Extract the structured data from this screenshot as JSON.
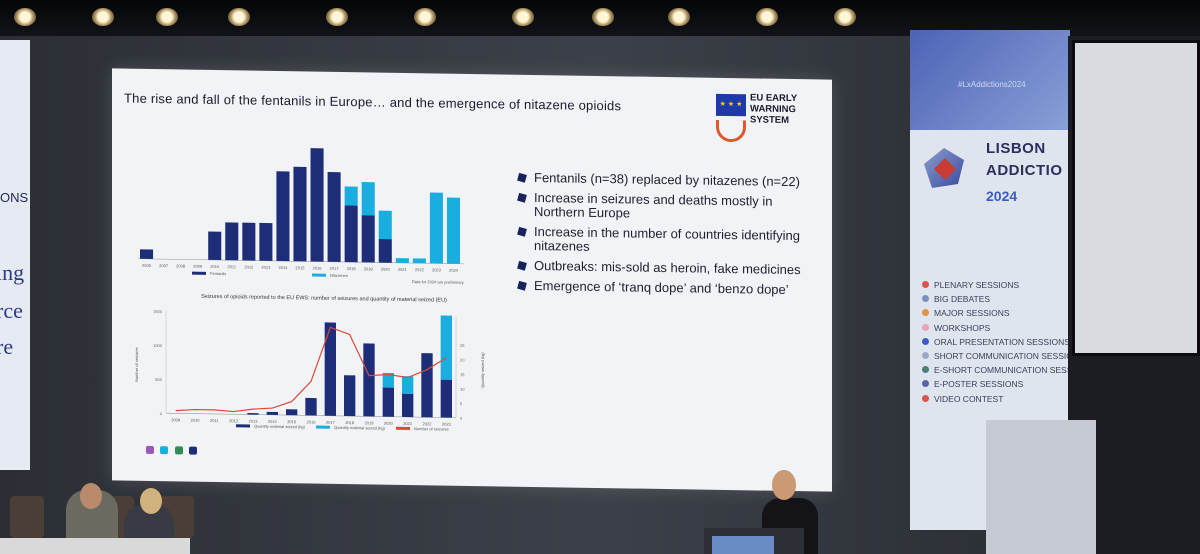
{
  "slide": {
    "title": "The rise and fall of the fentanils in Europe… and the emergence of nitazene opioids",
    "logo": {
      "lines": [
        "EU EARLY",
        "WARNING",
        "SYSTEM"
      ],
      "flag_color": "#1f3aa8"
    },
    "bullets": [
      "Fentanils (n=38) replaced by nitazenes (n=22)",
      "Increase in seizures and deaths mostly in Northern Europe",
      "Increase in the number of countries identifying nitazenes",
      "Outbreaks: mis-sold as heroin, fake medicines",
      "Emergence of ‘tranq dope’ and ‘benzo dope’"
    ],
    "chart2_title": "Seizures of opioids reported to the EU EWS: number of seizures and quantity of material seized (EU)",
    "chart1_note": "Data for 2024 are preliminary"
  },
  "chart_data": [
    {
      "type": "bar",
      "stacked": true,
      "categories": [
        "2006",
        "2007",
        "2008",
        "2009",
        "2010",
        "2011",
        "2012",
        "2013",
        "2014",
        "2015",
        "2016",
        "2017",
        "2018",
        "2019",
        "2020",
        "2021",
        "2022",
        "2023",
        "2024"
      ],
      "series": [
        {
          "name": "Fentanils",
          "color": "#1d2d78",
          "values": [
            2,
            0,
            0,
            0,
            6,
            8,
            8,
            8,
            19,
            20,
            24,
            19,
            12,
            10,
            5,
            0,
            0,
            0,
            0
          ]
        },
        {
          "name": "Nitazenes",
          "color": "#1aaee0",
          "values": [
            0,
            0,
            0,
            0,
            0,
            0,
            0,
            0,
            0,
            0,
            0,
            0,
            4,
            7,
            6,
            1,
            1,
            15,
            14
          ]
        }
      ],
      "legend": "bottom"
    },
    {
      "type": "bar",
      "stacked": true,
      "categories": [
        "2009",
        "2010",
        "2011",
        "2012",
        "2013",
        "2014",
        "2015",
        "2016",
        "2017",
        "2018",
        "2019",
        "2020",
        "2021",
        "2022",
        "2023"
      ],
      "series": [
        {
          "name": "Quantity material seized (kg)",
          "color": "#1d2d78",
          "values": [
            0,
            0,
            0,
            0,
            0.5,
            1,
            2,
            6,
            32,
            14,
            25,
            10,
            8,
            22,
            13
          ]
        },
        {
          "name": "Quantity material seized (kg)",
          "color": "#1aaee0",
          "values": [
            0,
            0,
            0,
            0,
            0,
            0,
            0,
            0,
            0,
            0,
            0,
            5,
            6,
            0,
            22
          ]
        }
      ],
      "line": {
        "name": "Number of seizures",
        "color": "#d94a3a",
        "values": [
          40,
          60,
          60,
          40,
          80,
          100,
          200,
          500,
          1300,
          1200,
          600,
          620,
          580,
          700,
          880
        ]
      },
      "ylabel_left": "Number of seizures",
      "ylabel_right": "Quantity seized (kg)",
      "ylim_left": [
        0,
        1500
      ],
      "ylim_right": [
        0,
        25
      ],
      "legend": "bottom"
    }
  ],
  "banner": {
    "hashtag": "#LxAddictions2024",
    "name_line1": "LISBON",
    "name_line2": "ADDICTIO",
    "year": "2024",
    "sessions": [
      {
        "label": "PLENARY SESSIONS",
        "color": "#d9534f"
      },
      {
        "label": "BIG DEBATES",
        "color": "#7d8fc0"
      },
      {
        "label": "MAJOR SESSIONS",
        "color": "#e2934a"
      },
      {
        "label": "WORKSHOPS",
        "color": "#e7a7b8"
      },
      {
        "label": "ORAL PRESENTATION SESSIONS",
        "color": "#3d5bc2"
      },
      {
        "label": "SHORT COMMUNICATION SESSIONS",
        "color": "#9aa7c9"
      },
      {
        "label": "E-SHORT COMMUNICATION SESSIONS",
        "color": "#4e7d74"
      },
      {
        "label": "E-POSTER SESSIONS",
        "color": "#5b63a8"
      },
      {
        "label": "VIDEO CONTEST",
        "color": "#d9534f"
      }
    ]
  },
  "left_banner": {
    "fragment1": "ONS",
    "fragment2": "ing",
    "fragment3": "rce",
    "fragment4": "re"
  }
}
